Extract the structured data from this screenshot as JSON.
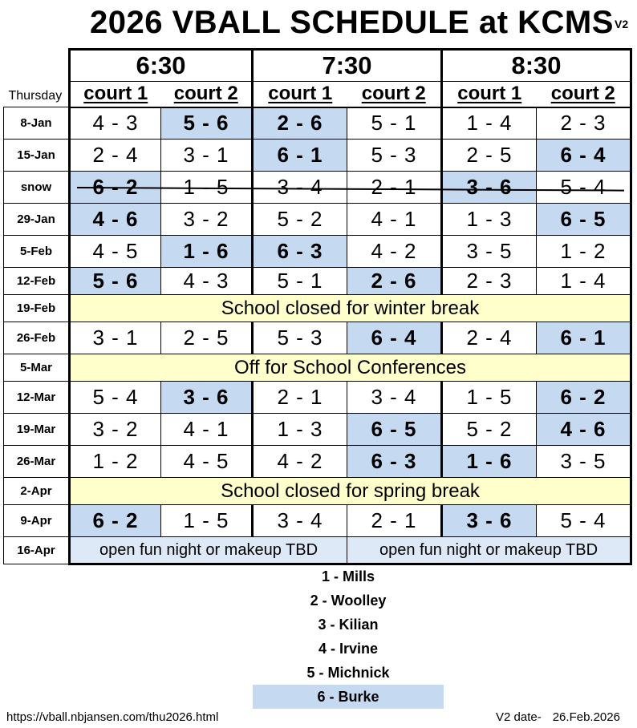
{
  "title": "2026 VBALL SCHEDULE at KCMS",
  "version": "V2",
  "day_label": "Thursday",
  "times": [
    "6:30",
    "7:30",
    "8:30"
  ],
  "courts": [
    "court 1",
    "court 2"
  ],
  "rows": [
    {
      "date": "8-Jan",
      "games": [
        "4 - 3",
        "5 - 6",
        "2 - 6",
        "5 - 1",
        "1 - 4",
        "2 - 3"
      ]
    },
    {
      "date": "15-Jan",
      "games": [
        "2 - 4",
        "3 - 1",
        "6 - 1",
        "5 - 3",
        "2 - 5",
        "6 - 4"
      ]
    },
    {
      "date": "snow",
      "games": [
        "6 - 2",
        "1 - 5",
        "3 - 4",
        "2 - 1",
        "3 - 6",
        "5 - 4"
      ]
    },
    {
      "date": "29-Jan",
      "games": [
        "4 - 6",
        "3 - 2",
        "5 - 2",
        "4 - 1",
        "1 - 3",
        "6 - 5"
      ]
    },
    {
      "date": "5-Feb",
      "games": [
        "4 - 5",
        "1 - 6",
        "6 - 3",
        "4 - 2",
        "3 - 5",
        "1 - 2"
      ]
    },
    {
      "date": "12-Feb",
      "games": [
        "5 - 6",
        "4 - 3",
        "5 - 1",
        "2 - 6",
        "2 - 3",
        "1 - 4"
      ]
    },
    {
      "date": "19-Feb",
      "note": "School closed for winter break"
    },
    {
      "date": "26-Feb",
      "games": [
        "3 - 1",
        "2 - 5",
        "5 - 3",
        "6 - 4",
        "2 - 4",
        "6 - 1"
      ]
    },
    {
      "date": "5-Mar",
      "note": "Off for School Conferences"
    },
    {
      "date": "12-Mar",
      "games": [
        "5 - 4",
        "3 - 6",
        "2 - 1",
        "3 - 4",
        "1 - 5",
        "6 - 2"
      ]
    },
    {
      "date": "19-Mar",
      "games": [
        "3 - 2",
        "4 - 1",
        "1 - 3",
        "6 - 5",
        "5 - 2",
        "4 - 6"
      ]
    },
    {
      "date": "26-Mar",
      "games": [
        "1 - 2",
        "4 - 5",
        "4 - 2",
        "6 - 3",
        "1 - 6",
        "3 - 5"
      ]
    },
    {
      "date": "2-Apr",
      "note": "School closed for spring break"
    },
    {
      "date": "9-Apr",
      "games": [
        "6 - 2",
        "1 - 5",
        "3 - 4",
        "2 - 1",
        "3 - 6",
        "5 - 4"
      ]
    },
    {
      "date": "16-Apr",
      "halves": [
        "open fun night or makeup TBD",
        "open fun night or makeup TBD"
      ]
    }
  ],
  "legend": [
    "1 - Mills",
    "2 - Woolley",
    "3 - Kilian",
    "4 - Irvine",
    "5 - Michnick",
    "6 - Burke"
  ],
  "highlight_team": "6",
  "highlight_color": "#c5d9f0",
  "note_color": "#ffffcc",
  "footer": {
    "url": "https://vball.nbjansen.com/thu2026.html",
    "version_label": "V2 date-",
    "version_date": "26.Feb.2026"
  }
}
